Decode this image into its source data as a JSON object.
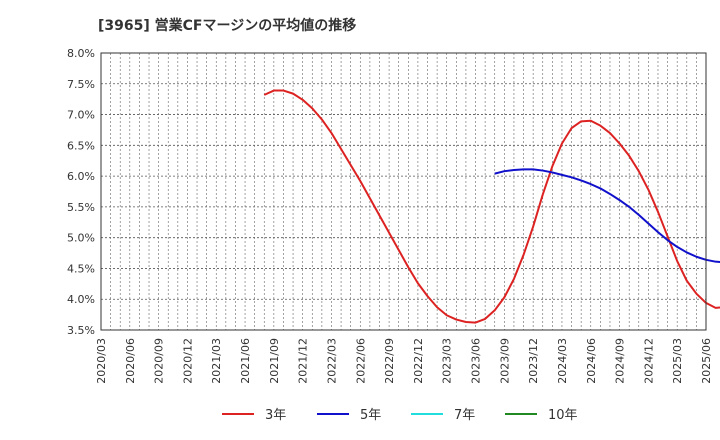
{
  "chart_data": {
    "type": "line",
    "title": "[3965]  営業CFマージンの平均値の推移",
    "xlabel": "",
    "ylabel": "",
    "ylim": [
      3.5,
      8.0
    ],
    "y_ticks": [
      "8.0%",
      "7.5%",
      "7.0%",
      "6.5%",
      "6.0%",
      "5.5%",
      "5.0%",
      "4.5%",
      "4.0%",
      "3.5%"
    ],
    "x_ticks": [
      "2020/03",
      "2020/06",
      "2020/09",
      "2020/12",
      "2021/03",
      "2021/06",
      "2021/09",
      "2021/12",
      "2022/03",
      "2022/06",
      "2022/09",
      "2022/12",
      "2023/03",
      "2023/06",
      "2023/09",
      "2023/12",
      "2024/03",
      "2024/06",
      "2024/09",
      "2024/12",
      "2025/03",
      "2025/06"
    ],
    "grid": true,
    "legend_position": "bottom",
    "series": [
      {
        "name": "3年",
        "color": "#dd2222",
        "start": "2021/08",
        "values": [
          7.32,
          7.39,
          7.39,
          7.34,
          7.24,
          7.1,
          6.92,
          6.7,
          6.44,
          6.18,
          5.92,
          5.64,
          5.36,
          5.08,
          4.8,
          4.52,
          4.26,
          4.05,
          3.87,
          3.74,
          3.67,
          3.63,
          3.62,
          3.68,
          3.82,
          4.03,
          4.33,
          4.72,
          5.18,
          5.7,
          6.16,
          6.53,
          6.78,
          6.89,
          6.9,
          6.82,
          6.7,
          6.53,
          6.33,
          6.08,
          5.78,
          5.42,
          5.02,
          4.62,
          4.3,
          4.09,
          3.94,
          3.86,
          3.87,
          3.98
        ]
      },
      {
        "name": "5年",
        "color": "#1111cc",
        "start": "2023/08",
        "values": [
          6.04,
          6.08,
          6.1,
          6.11,
          6.11,
          6.09,
          6.06,
          6.02,
          5.98,
          5.93,
          5.87,
          5.8,
          5.71,
          5.61,
          5.5,
          5.37,
          5.23,
          5.09,
          4.96,
          4.85,
          4.76,
          4.69,
          4.64,
          4.61,
          4.6,
          4.6
        ]
      },
      {
        "name": "7年",
        "color": "#22dddd",
        "start": "",
        "values": []
      },
      {
        "name": "10年",
        "color": "#228822",
        "start": "",
        "values": []
      }
    ]
  }
}
